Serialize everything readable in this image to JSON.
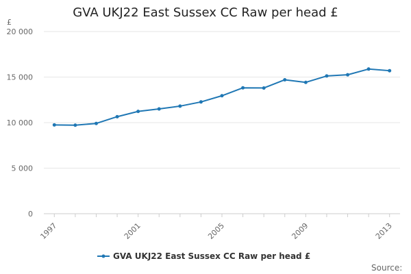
{
  "chart_data": {
    "type": "line",
    "title": "GVA UKJ22 East Sussex CC Raw per head £",
    "ylabel": "£",
    "xlabel": "",
    "x": [
      1997,
      1998,
      1999,
      2000,
      2001,
      2002,
      2003,
      2004,
      2005,
      2006,
      2007,
      2008,
      2009,
      2010,
      2011,
      2012,
      2013
    ],
    "x_tick_labels": [
      "1997",
      "2001",
      "2005",
      "2009",
      "2013"
    ],
    "y_tick_labels": [
      "0",
      "5 000",
      "10 000",
      "15 000",
      "20 000"
    ],
    "ylim": [
      0,
      20000
    ],
    "xlim": [
      1997,
      2013
    ],
    "series": [
      {
        "name": "GVA UKJ22 East Sussex CC Raw per head £",
        "color": "#1f77b4",
        "values": [
          9750,
          9720,
          9910,
          10650,
          11230,
          11500,
          11810,
          12270,
          12950,
          13820,
          13800,
          14700,
          14420,
          15120,
          15250,
          15880,
          15700
        ]
      }
    ],
    "legend_position": "bottom",
    "grid": true
  },
  "source_label": "Source:"
}
